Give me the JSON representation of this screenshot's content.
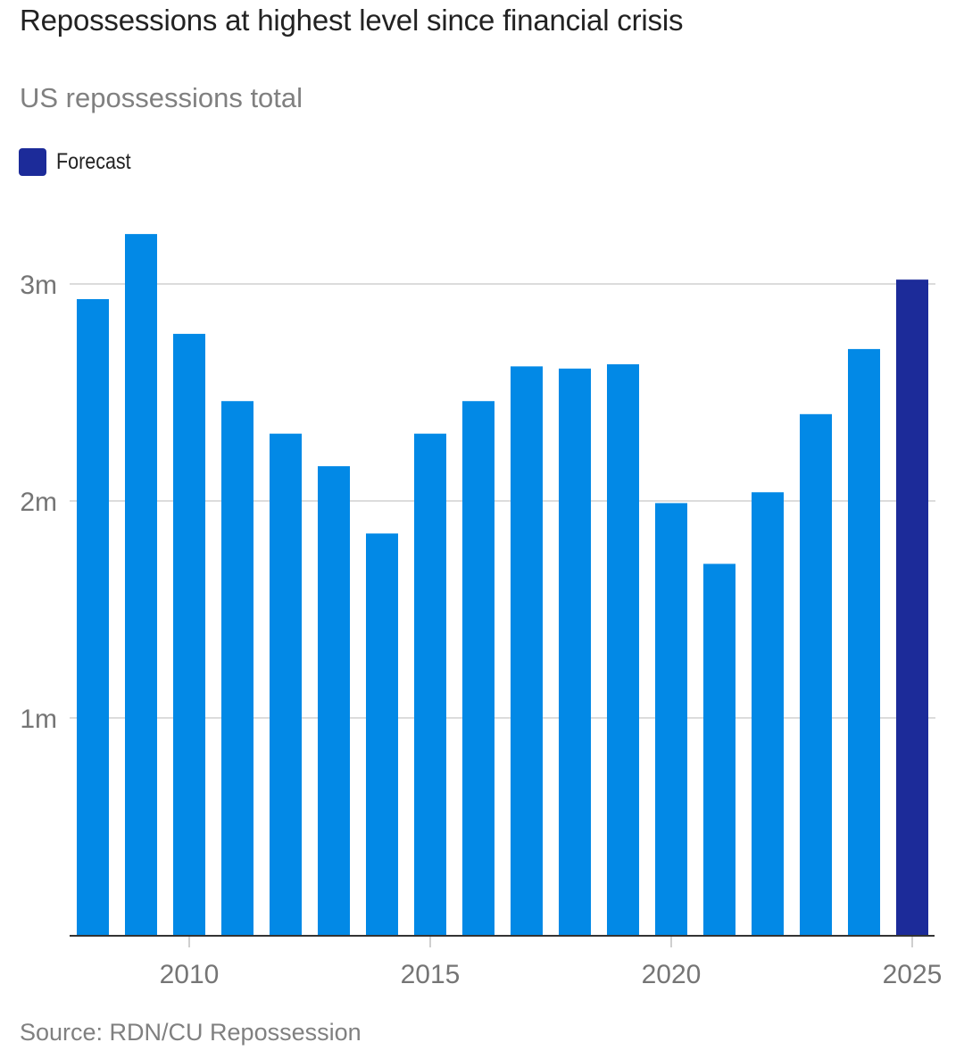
{
  "header": {
    "title": "Repossessions at highest level since financial crisis",
    "subtitle": "US repossessions total"
  },
  "legend": {
    "items": [
      {
        "label": "Forecast",
        "color": "#1c2b99"
      }
    ]
  },
  "footer": {
    "source": "Source: RDN/CU Repossession"
  },
  "chart_data": {
    "type": "bar",
    "title": "Repossessions at highest level since financial crisis",
    "subtitle": "US repossessions total",
    "xlabel": "",
    "ylabel": "",
    "categories": [
      2008,
      2009,
      2010,
      2011,
      2012,
      2013,
      2014,
      2015,
      2016,
      2017,
      2018,
      2019,
      2020,
      2021,
      2022,
      2023,
      2024,
      2025
    ],
    "values": [
      2.93,
      3.23,
      2.77,
      2.46,
      2.31,
      2.16,
      1.85,
      2.31,
      2.46,
      2.62,
      2.61,
      2.63,
      1.99,
      1.71,
      2.04,
      2.4,
      2.7,
      3.02
    ],
    "value_unit": "millions",
    "forecast": [
      false,
      false,
      false,
      false,
      false,
      false,
      false,
      false,
      false,
      false,
      false,
      false,
      false,
      false,
      false,
      false,
      false,
      true
    ],
    "colors": {
      "actual": "#0289e6",
      "forecast": "#1c2b99",
      "grid": "#dcdcdc",
      "axis": "#333333",
      "tick": "#cfcfcf"
    },
    "ylim": [
      0,
      3.35
    ],
    "yticks": [
      {
        "value": 1,
        "label": "1m"
      },
      {
        "value": 2,
        "label": "2m"
      },
      {
        "value": 3,
        "label": "3m"
      }
    ],
    "xticks": [
      {
        "value": 2010,
        "label": "2010"
      },
      {
        "value": 2015,
        "label": "2015"
      },
      {
        "value": 2020,
        "label": "2020"
      },
      {
        "value": 2025,
        "label": "2025"
      }
    ],
    "grid": true,
    "legend_position": "top-left"
  }
}
